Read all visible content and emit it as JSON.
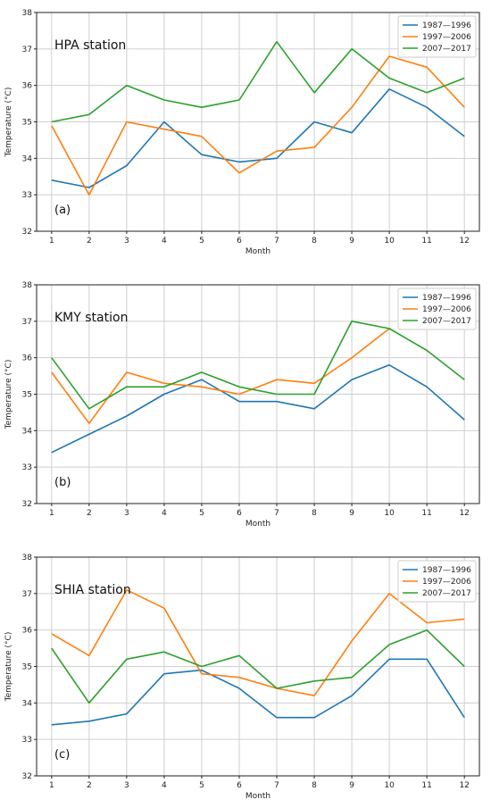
{
  "colors": {
    "series_0": "#1f77b4",
    "series_1": "#ff7f0e",
    "series_2": "#2ca02c",
    "grid": "#cfcfcf"
  },
  "chart_data": [
    {
      "type": "line",
      "title": "HPA station",
      "panel_label": "(a)",
      "xlabel": "Month",
      "ylabel": "Temperature (°C)",
      "x": [
        1,
        2,
        3,
        4,
        5,
        6,
        7,
        8,
        9,
        10,
        11,
        12
      ],
      "xticks": [
        "1",
        "2",
        "3",
        "4",
        "5",
        "6",
        "7",
        "8",
        "9",
        "10",
        "11",
        "12"
      ],
      "xlim": [
        0.6,
        12.4
      ],
      "ylim": [
        32,
        38
      ],
      "yticks": [
        "32",
        "33",
        "34",
        "35",
        "36",
        "37",
        "38"
      ],
      "grid": true,
      "legend_position": "top-right",
      "series": [
        {
          "name": "1987—1996",
          "values": [
            33.4,
            33.2,
            33.8,
            35.0,
            34.1,
            33.9,
            34.0,
            35.0,
            34.7,
            35.9,
            35.4,
            34.6
          ]
        },
        {
          "name": "1997—2006",
          "values": [
            34.9,
            33.0,
            35.0,
            34.8,
            34.6,
            33.6,
            34.2,
            34.3,
            35.4,
            36.8,
            36.5,
            35.4
          ]
        },
        {
          "name": "2007—2017",
          "values": [
            35.0,
            35.2,
            36.0,
            35.6,
            35.4,
            35.6,
            37.2,
            35.8,
            37.0,
            36.2,
            35.8,
            36.2
          ]
        }
      ]
    },
    {
      "type": "line",
      "title": "KMY station",
      "panel_label": "(b)",
      "xlabel": "Month",
      "ylabel": "Temperature (°C)",
      "x": [
        1,
        2,
        3,
        4,
        5,
        6,
        7,
        8,
        9,
        10,
        11,
        12
      ],
      "xticks": [
        "1",
        "2",
        "3",
        "4",
        "5",
        "6",
        "7",
        "8",
        "9",
        "10",
        "11",
        "12"
      ],
      "xlim": [
        0.6,
        12.4
      ],
      "ylim": [
        32,
        38
      ],
      "yticks": [
        "32",
        "33",
        "34",
        "35",
        "36",
        "37",
        "38"
      ],
      "grid": true,
      "legend_position": "top-right",
      "series": [
        {
          "name": "1987—1996",
          "values": [
            33.4,
            33.9,
            34.4,
            35.0,
            35.4,
            34.8,
            34.8,
            34.6,
            35.4,
            35.8,
            35.2,
            34.3
          ]
        },
        {
          "name": "1997—2006",
          "values": [
            35.6,
            34.2,
            35.6,
            35.3,
            35.2,
            35.0,
            35.4,
            35.3,
            36.0,
            36.8,
            null,
            null
          ]
        },
        {
          "name": "2007—2017",
          "values": [
            36.0,
            34.6,
            35.2,
            35.2,
            35.6,
            35.2,
            35.0,
            35.0,
            37.0,
            36.8,
            36.2,
            35.4
          ]
        }
      ]
    },
    {
      "type": "line",
      "title": "SHIA station",
      "panel_label": "(c)",
      "xlabel": "Month",
      "ylabel": "Temperature (°C)",
      "x": [
        1,
        2,
        3,
        4,
        5,
        6,
        7,
        8,
        9,
        10,
        11,
        12
      ],
      "xticks": [
        "1",
        "2",
        "3",
        "4",
        "5",
        "6",
        "7",
        "8",
        "9",
        "10",
        "11",
        "12"
      ],
      "xlim": [
        0.6,
        12.4
      ],
      "ylim": [
        32,
        38
      ],
      "yticks": [
        "32",
        "33",
        "34",
        "35",
        "36",
        "37",
        "38"
      ],
      "grid": true,
      "legend_position": "top-right",
      "series": [
        {
          "name": "1987—1996",
          "values": [
            33.4,
            33.5,
            33.7,
            34.8,
            34.9,
            34.4,
            33.6,
            33.6,
            34.2,
            35.2,
            35.2,
            33.6
          ]
        },
        {
          "name": "1997—2006",
          "values": [
            35.9,
            35.3,
            37.1,
            36.6,
            34.8,
            34.7,
            34.4,
            34.2,
            35.7,
            37.0,
            36.2,
            36.3
          ]
        },
        {
          "name": "2007—2017",
          "values": [
            35.5,
            34.0,
            35.2,
            35.4,
            35.0,
            35.3,
            34.4,
            34.6,
            34.7,
            35.6,
            36.0,
            35.0
          ]
        }
      ]
    }
  ]
}
